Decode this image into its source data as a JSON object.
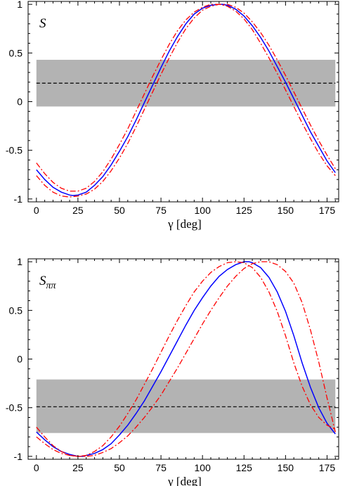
{
  "chart_data": [
    {
      "type": "line",
      "panel_label": "S",
      "xlabel": "γ [deg]",
      "ylabel": "",
      "xlim": [
        -5,
        182
      ],
      "ylim": [
        -1.03,
        1.03
      ],
      "xticks": [
        0,
        25,
        50,
        75,
        100,
        125,
        150,
        175
      ],
      "xtick_labels": [
        "0",
        "25",
        "50",
        "75",
        "100",
        "125",
        "150",
        "175"
      ],
      "yticks": [
        -1,
        -0.5,
        0,
        0.5,
        1
      ],
      "ytick_labels": [
        "-1",
        "-0.5",
        "0",
        "0.5",
        "1"
      ],
      "grid": false,
      "band": {
        "y_low": -0.05,
        "y_high": 0.43,
        "center": 0.19,
        "color": "#b3b3b3",
        "line_color": "#000000"
      },
      "series": [
        {
          "style": "solid",
          "color": "#0000ff",
          "x": [
            0,
            5,
            10,
            15,
            20,
            22,
            25,
            30,
            35,
            40,
            45,
            50,
            55,
            60,
            65,
            70,
            75,
            80,
            85,
            90,
            95,
            100,
            105,
            110,
            112,
            115,
            120,
            125,
            130,
            135,
            140,
            145,
            150,
            155,
            160,
            165,
            170,
            175,
            180
          ],
          "y": [
            -0.7,
            -0.8,
            -0.88,
            -0.93,
            -0.96,
            -0.965,
            -0.96,
            -0.93,
            -0.86,
            -0.77,
            -0.65,
            -0.51,
            -0.36,
            -0.19,
            -0.01,
            0.17,
            0.35,
            0.52,
            0.67,
            0.8,
            0.9,
            0.96,
            0.99,
            1.0,
            1.0,
            0.99,
            0.95,
            0.88,
            0.78,
            0.66,
            0.52,
            0.36,
            0.2,
            0.03,
            -0.14,
            -0.31,
            -0.46,
            -0.61,
            -0.73
          ]
        },
        {
          "style": "dashdot",
          "color": "#ff0000",
          "x": [
            0,
            5,
            10,
            15,
            20,
            25,
            30,
            35,
            40,
            45,
            50,
            55,
            60,
            65,
            70,
            75,
            80,
            85,
            90,
            95,
            100,
            105,
            110,
            115,
            120,
            125,
            130,
            135,
            140,
            145,
            150,
            155,
            160,
            165,
            170,
            175,
            180
          ],
          "y": [
            -0.63,
            -0.74,
            -0.83,
            -0.89,
            -0.92,
            -0.92,
            -0.89,
            -0.82,
            -0.72,
            -0.59,
            -0.44,
            -0.28,
            -0.1,
            0.08,
            0.26,
            0.43,
            0.59,
            0.73,
            0.84,
            0.92,
            0.97,
            1.0,
            1.0,
            0.98,
            0.93,
            0.85,
            0.74,
            0.6,
            0.45,
            0.29,
            0.12,
            -0.05,
            -0.22,
            -0.38,
            -0.53,
            -0.66,
            -0.76
          ]
        },
        {
          "style": "dashdot",
          "color": "#ff0000",
          "x": [
            0,
            5,
            10,
            15,
            20,
            25,
            30,
            35,
            40,
            45,
            50,
            55,
            60,
            65,
            70,
            75,
            80,
            85,
            90,
            95,
            100,
            105,
            110,
            115,
            120,
            125,
            130,
            135,
            140,
            145,
            150,
            155,
            160,
            165,
            170,
            175,
            180
          ],
          "y": [
            -0.76,
            -0.86,
            -0.93,
            -0.97,
            -0.98,
            -0.97,
            -0.95,
            -0.9,
            -0.82,
            -0.71,
            -0.58,
            -0.43,
            -0.26,
            -0.08,
            0.1,
            0.28,
            0.45,
            0.61,
            0.75,
            0.86,
            0.94,
            0.98,
            1.0,
            1.0,
            0.97,
            0.91,
            0.82,
            0.71,
            0.58,
            0.43,
            0.27,
            0.1,
            -0.07,
            -0.24,
            -0.4,
            -0.55,
            -0.69
          ]
        }
      ]
    },
    {
      "type": "line",
      "panel_label": "Sππ",
      "xlabel": "γ [deg]",
      "ylabel": "",
      "xlim": [
        -5,
        182
      ],
      "ylim": [
        -1.03,
        1.03
      ],
      "xticks": [
        0,
        25,
        50,
        75,
        100,
        125,
        150,
        175
      ],
      "xtick_labels": [
        "0",
        "25",
        "50",
        "75",
        "100",
        "125",
        "150",
        "175"
      ],
      "yticks": [
        -1,
        -0.5,
        0,
        0.5,
        1
      ],
      "ytick_labels": [
        "-1",
        "-0.5",
        "0",
        "0.5",
        "1"
      ],
      "grid": false,
      "band": {
        "y_low": -0.76,
        "y_high": -0.21,
        "center": -0.49,
        "color": "#b3b3b3",
        "line_color": "#000000"
      },
      "series": [
        {
          "style": "solid",
          "color": "#0000ff",
          "x": [
            0,
            5,
            10,
            15,
            20,
            25,
            28,
            30,
            35,
            40,
            45,
            50,
            55,
            60,
            65,
            70,
            75,
            80,
            85,
            90,
            95,
            100,
            105,
            110,
            115,
            120,
            125,
            128,
            130,
            135,
            140,
            145,
            150,
            155,
            160,
            165,
            170,
            175,
            180
          ],
          "y": [
            -0.75,
            -0.83,
            -0.9,
            -0.95,
            -0.98,
            -1.0,
            -1.0,
            -0.99,
            -0.97,
            -0.93,
            -0.87,
            -0.78,
            -0.68,
            -0.56,
            -0.43,
            -0.28,
            -0.13,
            0.03,
            0.19,
            0.35,
            0.5,
            0.63,
            0.75,
            0.85,
            0.92,
            0.97,
            1.0,
            1.0,
            0.99,
            0.94,
            0.84,
            0.69,
            0.49,
            0.24,
            -0.04,
            -0.29,
            -0.5,
            -0.66,
            -0.77
          ]
        },
        {
          "style": "dashdot",
          "color": "#ff0000",
          "x": [
            0,
            5,
            10,
            15,
            20,
            25,
            30,
            35,
            40,
            45,
            50,
            55,
            60,
            65,
            70,
            75,
            80,
            85,
            90,
            95,
            100,
            105,
            110,
            115,
            120,
            125,
            130,
            135,
            140,
            145,
            150,
            155,
            160,
            165,
            170,
            175,
            180
          ],
          "y": [
            -0.7,
            -0.8,
            -0.89,
            -0.95,
            -0.99,
            -1.0,
            -0.99,
            -0.95,
            -0.89,
            -0.8,
            -0.69,
            -0.56,
            -0.42,
            -0.26,
            -0.1,
            0.07,
            0.24,
            0.4,
            0.55,
            0.69,
            0.8,
            0.89,
            0.95,
            0.99,
            1.0,
            0.99,
            0.94,
            0.84,
            0.69,
            0.49,
            0.24,
            -0.04,
            -0.28,
            -0.47,
            -0.6,
            -0.68,
            -0.72
          ]
        },
        {
          "style": "dashdot",
          "color": "#ff0000",
          "x": [
            0,
            5,
            10,
            15,
            20,
            25,
            30,
            35,
            40,
            45,
            50,
            55,
            60,
            65,
            70,
            75,
            80,
            85,
            90,
            95,
            100,
            105,
            110,
            115,
            120,
            125,
            130,
            135,
            140,
            145,
            150,
            155,
            160,
            165,
            170,
            175,
            180
          ],
          "y": [
            -0.8,
            -0.87,
            -0.93,
            -0.97,
            -0.99,
            -1.0,
            -1.0,
            -0.99,
            -0.96,
            -0.92,
            -0.86,
            -0.79,
            -0.7,
            -0.6,
            -0.49,
            -0.37,
            -0.23,
            -0.09,
            0.06,
            0.21,
            0.36,
            0.5,
            0.63,
            0.75,
            0.85,
            0.93,
            0.98,
            1.0,
            1.0,
            0.97,
            0.9,
            0.78,
            0.58,
            0.3,
            -0.03,
            -0.4,
            -0.75
          ]
        }
      ]
    }
  ]
}
